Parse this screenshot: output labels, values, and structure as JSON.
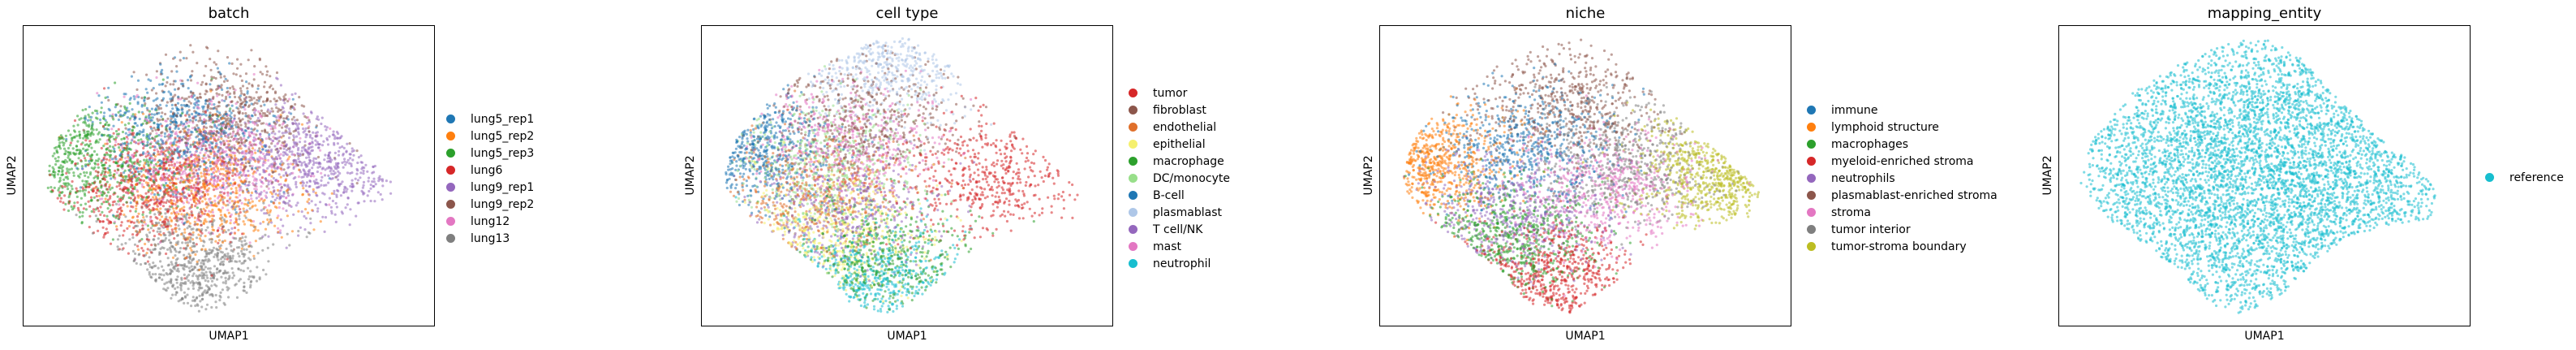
{
  "chart_data": [
    {
      "type": "scatter",
      "title": "batch",
      "xlabel": "UMAP1",
      "ylabel": "UMAP2",
      "grid": false,
      "legend_position": "right",
      "series": [
        {
          "name": "lung5_rep1",
          "color": "#1f77b4"
        },
        {
          "name": "lung5_rep2",
          "color": "#ff7f0e"
        },
        {
          "name": "lung5_rep3",
          "color": "#2ca02c"
        },
        {
          "name": "lung6",
          "color": "#d62728"
        },
        {
          "name": "lung9_rep1",
          "color": "#9467bd"
        },
        {
          "name": "lung9_rep2",
          "color": "#8c564b"
        },
        {
          "name": "lung12",
          "color": "#e377c2"
        },
        {
          "name": "lung13",
          "color": "#7f7f7f"
        }
      ]
    },
    {
      "type": "scatter",
      "title": "cell type",
      "xlabel": "UMAP1",
      "ylabel": "UMAP2",
      "grid": false,
      "legend_position": "right",
      "series": [
        {
          "name": "tumor",
          "color": "#d62728"
        },
        {
          "name": "fibroblast",
          "color": "#8c564b"
        },
        {
          "name": "endothelial",
          "color": "#e0702b"
        },
        {
          "name": "epithelial",
          "color": "#f5f06e"
        },
        {
          "name": "macrophage",
          "color": "#2ca02c"
        },
        {
          "name": "DC/monocyte",
          "color": "#98df8a"
        },
        {
          "name": "B-cell",
          "color": "#1f77b4"
        },
        {
          "name": "plasmablast",
          "color": "#aec7e8"
        },
        {
          "name": "T cell/NK",
          "color": "#9467bd"
        },
        {
          "name": "mast",
          "color": "#e377c2"
        },
        {
          "name": "neutrophil",
          "color": "#17becf"
        }
      ]
    },
    {
      "type": "scatter",
      "title": "niche",
      "xlabel": "UMAP1",
      "ylabel": "UMAP2",
      "grid": false,
      "legend_position": "right",
      "series": [
        {
          "name": "immune",
          "color": "#1f77b4"
        },
        {
          "name": "lymphoid structure",
          "color": "#ff7f0e"
        },
        {
          "name": "macrophages",
          "color": "#2ca02c"
        },
        {
          "name": "myeloid-enriched stroma",
          "color": "#d62728"
        },
        {
          "name": "neutrophils",
          "color": "#9467bd"
        },
        {
          "name": "plasmablast-enriched stroma",
          "color": "#8c564b"
        },
        {
          "name": "stroma",
          "color": "#e377c2"
        },
        {
          "name": "tumor interior",
          "color": "#7f7f7f"
        },
        {
          "name": "tumor-stroma boundary",
          "color": "#bcbd22"
        }
      ]
    },
    {
      "type": "scatter",
      "title": "mapping_entity",
      "xlabel": "UMAP1",
      "ylabel": "UMAP2",
      "grid": false,
      "legend_position": "right",
      "series": [
        {
          "name": "reference",
          "color": "#17becf"
        }
      ]
    }
  ]
}
